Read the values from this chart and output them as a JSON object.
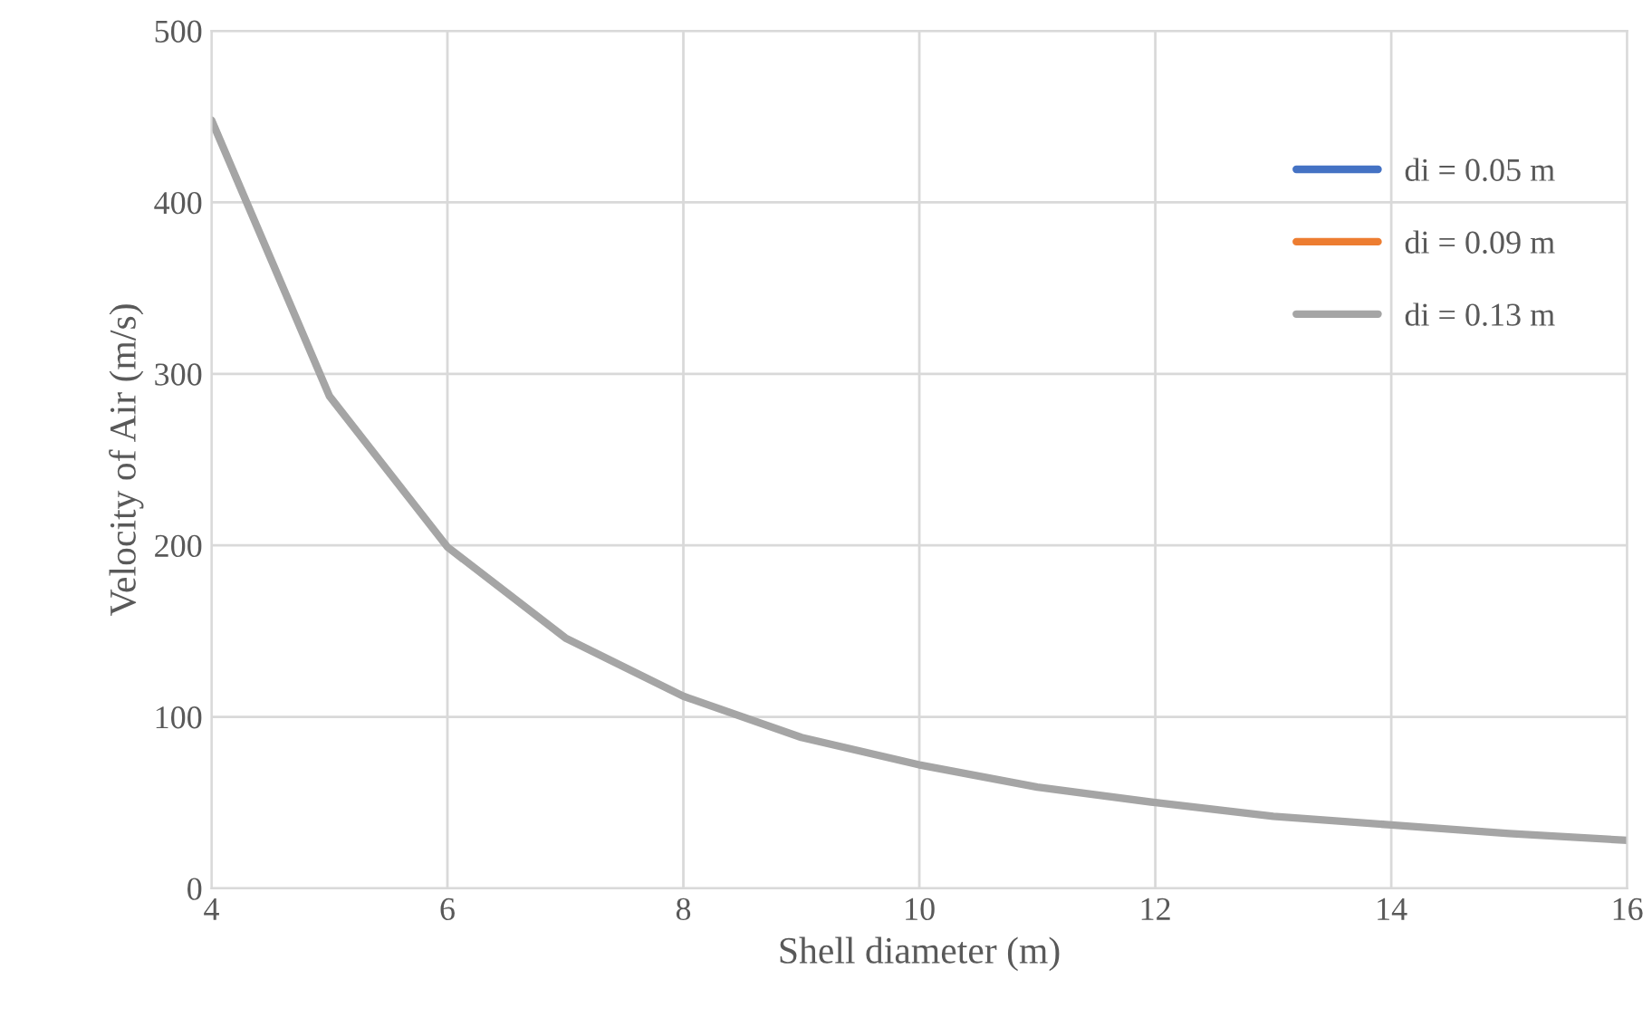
{
  "chart_data": {
    "type": "line",
    "xlabel": "Shell diameter (m)",
    "ylabel": "Velocity of Air (m/s)",
    "x": [
      4,
      5,
      6,
      7,
      8,
      9,
      10,
      11,
      12,
      13,
      14,
      15,
      16
    ],
    "series": [
      {
        "name": "di = 0.05 m",
        "color": "#4472c4",
        "values": [
          null,
          null,
          null,
          null,
          null,
          null,
          null,
          null,
          null,
          null,
          null,
          null,
          null
        ]
      },
      {
        "name": "di = 0.09 m",
        "color": "#ed7d31",
        "values": [
          null,
          null,
          null,
          null,
          null,
          null,
          null,
          null,
          null,
          null,
          null,
          null,
          null
        ]
      },
      {
        "name": "di = 0.13 m",
        "color": "#a5a5a5",
        "values": [
          448,
          287,
          199,
          146,
          112,
          88,
          72,
          59,
          50,
          42,
          37,
          32,
          28
        ]
      }
    ],
    "xlim": [
      4,
      16
    ],
    "xticks": [
      4,
      6,
      8,
      10,
      12,
      14,
      16
    ],
    "ylim": [
      0,
      500
    ],
    "yticks": [
      0,
      100,
      200,
      300,
      400,
      500
    ],
    "grid": true,
    "legend": "right",
    "marker": "none",
    "line_style": "solid"
  }
}
